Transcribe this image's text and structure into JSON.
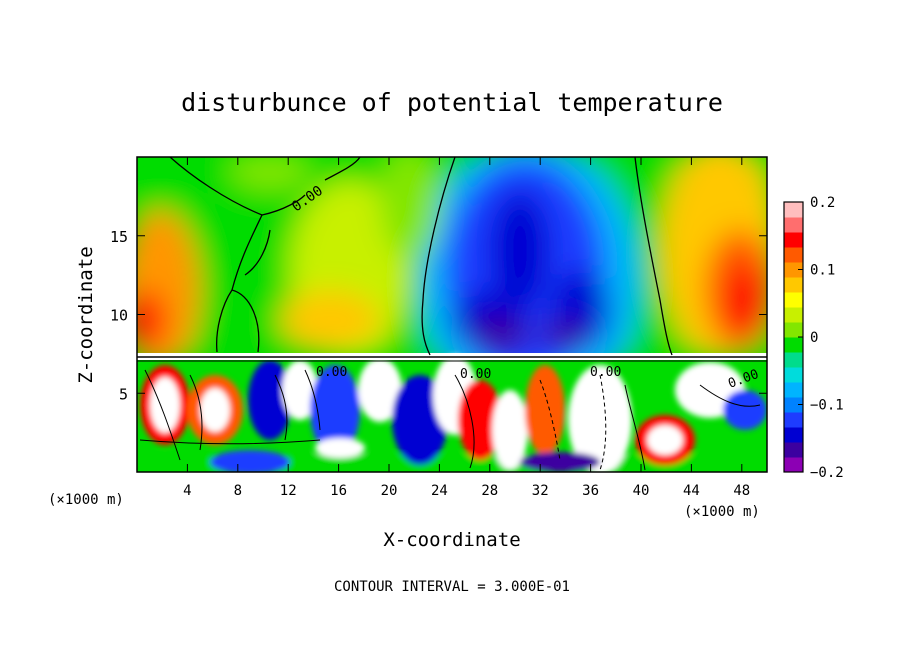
{
  "chart_data": {
    "type": "heatmap",
    "title": "disturbunce of potential temperature",
    "xlabel": "X-coordinate",
    "ylabel": "Z-coordinate",
    "x_unit_label": "(×1000 m)",
    "x_unit_label_right": "(×1000 m)",
    "xlim": [
      0,
      50
    ],
    "ylim": [
      0,
      20
    ],
    "xticks": [
      4,
      8,
      12,
      16,
      20,
      24,
      28,
      32,
      36,
      40,
      44,
      48
    ],
    "yticks": [
      5,
      10,
      15
    ],
    "colorbar": {
      "range": [
        -0.2,
        0.2
      ],
      "tick_values": [
        0.2,
        0.1,
        0,
        -0.1,
        -0.2
      ],
      "tick_labels": [
        "0.2",
        "0.1",
        "0",
        "−0.1",
        "−0.2"
      ],
      "colors": [
        "#8c00b4",
        "#3c00a0",
        "#0000d2",
        "#1e3cff",
        "#0082ff",
        "#00b4ff",
        "#00dcdc",
        "#00dc8c",
        "#00dc00",
        "#82e600",
        "#c8f000",
        "#ffff00",
        "#ffc800",
        "#ff9600",
        "#ff5a00",
        "#ff0000",
        "#ff6e6e",
        "#ffbebe"
      ]
    },
    "contour_label": "0.00",
    "contour_interval_text": "CONTOUR INTERVAL = 3.000E-01",
    "regions": [
      {
        "x": [
          0,
          50
        ],
        "z": [
          7.3,
          20
        ],
        "description": "upper layer, smooth field"
      },
      {
        "x": [
          0,
          50
        ],
        "z": [
          0,
          7.3
        ],
        "description": "lower turbulent layer"
      }
    ]
  }
}
